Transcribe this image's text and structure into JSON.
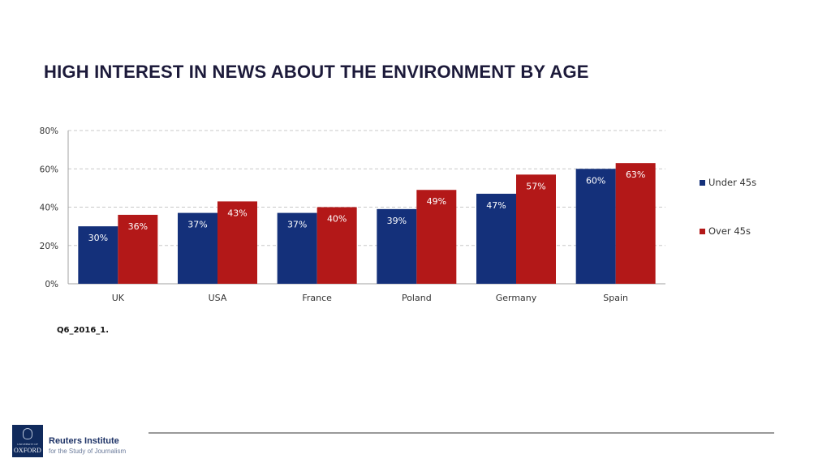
{
  "slide": {
    "title": "HIGH INTEREST IN NEWS ABOUT THE ENVIRONMENT BY AGE",
    "source_note": "Q6_2016_1.",
    "footer": {
      "logo_university_line": "UNIVERSITY OF",
      "logo_name": "OXFORD",
      "institute_name": "Reuters Institute",
      "institute_subtitle": "for the Study of Journalism"
    }
  },
  "chart_data": {
    "type": "bar",
    "title": "HIGH INTEREST IN NEWS ABOUT THE ENVIRONMENT BY AGE",
    "xlabel": "",
    "ylabel": "",
    "categories": [
      "UK",
      "USA",
      "France",
      "Poland",
      "Germany",
      "Spain"
    ],
    "series": [
      {
        "name": "Under 45s",
        "color": "#14307a",
        "values": [
          30,
          37,
          37,
          39,
          47,
          60
        ],
        "labels": [
          "30%",
          "37%",
          "37%",
          "39%",
          "47%",
          "60%"
        ]
      },
      {
        "name": "Over 45s",
        "color": "#b31818",
        "values": [
          36,
          43,
          40,
          49,
          57,
          63
        ],
        "labels": [
          "36%",
          "43%",
          "40%",
          "49%",
          "57%",
          "63%"
        ]
      }
    ],
    "ylim": [
      0,
      80
    ],
    "yticks": [
      0,
      20,
      40,
      60,
      80
    ],
    "ytick_labels": [
      "0%",
      "20%",
      "40%",
      "60%",
      "80%"
    ],
    "grid": "horizontal dashed",
    "legend": "right"
  }
}
